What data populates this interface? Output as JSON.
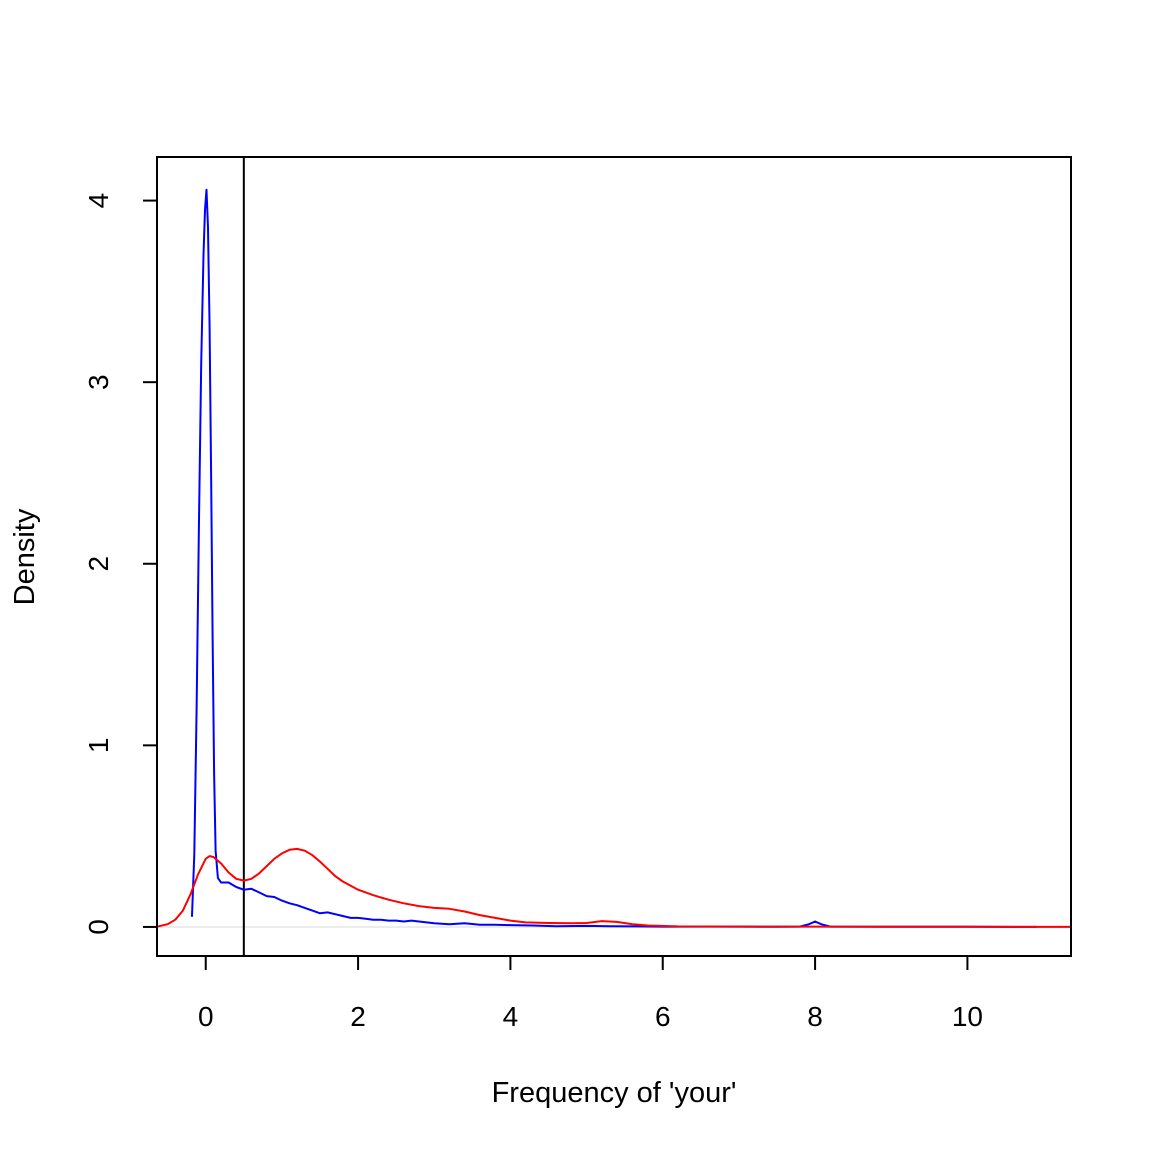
{
  "chart_data": {
    "type": "line",
    "title": "",
    "xlabel": "Frequency of 'your'",
    "ylabel": "Density",
    "xlim": [
      -0.64,
      11.36
    ],
    "ylim": [
      -0.16,
      4.24
    ],
    "x_ticks": [
      "0",
      "2",
      "4",
      "6",
      "8",
      "10"
    ],
    "y_ticks": [
      "0",
      "1",
      "2",
      "3",
      "4"
    ],
    "grid": false,
    "legend": null,
    "vline": {
      "x": 0.5,
      "color": "#000000"
    },
    "hline": {
      "y": 0,
      "color": "#e6e6e6"
    },
    "series": [
      {
        "color": "#0000ff",
        "points": [
          [
            -0.18,
            0.06
          ],
          [
            -0.15,
            0.4
          ],
          [
            -0.12,
            1.2
          ],
          [
            -0.09,
            2.2
          ],
          [
            -0.06,
            3.1
          ],
          [
            -0.03,
            3.7
          ],
          [
            -0.01,
            3.95
          ],
          [
            0.01,
            4.06
          ],
          [
            0.03,
            3.85
          ],
          [
            0.05,
            3.3
          ],
          [
            0.07,
            2.5
          ],
          [
            0.09,
            1.6
          ],
          [
            0.11,
            0.85
          ],
          [
            0.13,
            0.42
          ],
          [
            0.16,
            0.27
          ],
          [
            0.2,
            0.245
          ],
          [
            0.3,
            0.245
          ],
          [
            0.4,
            0.22
          ],
          [
            0.5,
            0.205
          ],
          [
            0.6,
            0.21
          ],
          [
            0.7,
            0.19
          ],
          [
            0.8,
            0.17
          ],
          [
            0.9,
            0.165
          ],
          [
            1.0,
            0.145
          ],
          [
            1.1,
            0.13
          ],
          [
            1.2,
            0.12
          ],
          [
            1.3,
            0.105
          ],
          [
            1.4,
            0.09
          ],
          [
            1.5,
            0.075
          ],
          [
            1.6,
            0.08
          ],
          [
            1.7,
            0.07
          ],
          [
            1.8,
            0.06
          ],
          [
            1.9,
            0.05
          ],
          [
            2.0,
            0.05
          ],
          [
            2.1,
            0.045
          ],
          [
            2.2,
            0.04
          ],
          [
            2.3,
            0.04
          ],
          [
            2.4,
            0.035
          ],
          [
            2.5,
            0.035
          ],
          [
            2.6,
            0.03
          ],
          [
            2.7,
            0.035
          ],
          [
            2.8,
            0.03
          ],
          [
            2.9,
            0.025
          ],
          [
            3.0,
            0.02
          ],
          [
            3.2,
            0.015
          ],
          [
            3.4,
            0.02
          ],
          [
            3.6,
            0.012
          ],
          [
            3.8,
            0.012
          ],
          [
            4.0,
            0.01
          ],
          [
            4.3,
            0.008
          ],
          [
            4.6,
            0.004
          ],
          [
            5.0,
            0.006
          ],
          [
            5.3,
            0.004
          ],
          [
            5.6,
            0.003
          ],
          [
            6.0,
            0.002
          ],
          [
            6.5,
            0.002
          ],
          [
            7.0,
            0.002
          ],
          [
            7.5,
            0.001
          ],
          [
            7.8,
            0.002
          ],
          [
            7.92,
            0.015
          ],
          [
            8.0,
            0.03
          ],
          [
            8.08,
            0.015
          ],
          [
            8.2,
            0.002
          ],
          [
            9.0,
            0.001
          ],
          [
            10.0,
            0.001
          ],
          [
            10.9,
            0.0
          ]
        ]
      },
      {
        "color": "#ff0000",
        "points": [
          [
            -0.64,
            0.002
          ],
          [
            -0.5,
            0.015
          ],
          [
            -0.4,
            0.04
          ],
          [
            -0.3,
            0.09
          ],
          [
            -0.2,
            0.18
          ],
          [
            -0.1,
            0.29
          ],
          [
            0.0,
            0.375
          ],
          [
            0.05,
            0.39
          ],
          [
            0.1,
            0.385
          ],
          [
            0.2,
            0.35
          ],
          [
            0.3,
            0.3
          ],
          [
            0.4,
            0.265
          ],
          [
            0.5,
            0.255
          ],
          [
            0.6,
            0.265
          ],
          [
            0.7,
            0.295
          ],
          [
            0.8,
            0.335
          ],
          [
            0.9,
            0.375
          ],
          [
            1.0,
            0.405
          ],
          [
            1.1,
            0.425
          ],
          [
            1.2,
            0.43
          ],
          [
            1.3,
            0.42
          ],
          [
            1.4,
            0.395
          ],
          [
            1.5,
            0.36
          ],
          [
            1.6,
            0.32
          ],
          [
            1.7,
            0.28
          ],
          [
            1.8,
            0.25
          ],
          [
            2.0,
            0.205
          ],
          [
            2.2,
            0.175
          ],
          [
            2.4,
            0.15
          ],
          [
            2.6,
            0.13
          ],
          [
            2.8,
            0.115
          ],
          [
            3.0,
            0.105
          ],
          [
            3.2,
            0.1
          ],
          [
            3.4,
            0.085
          ],
          [
            3.6,
            0.065
          ],
          [
            3.8,
            0.05
          ],
          [
            4.0,
            0.035
          ],
          [
            4.2,
            0.025
          ],
          [
            4.5,
            0.022
          ],
          [
            4.8,
            0.02
          ],
          [
            5.0,
            0.022
          ],
          [
            5.2,
            0.032
          ],
          [
            5.4,
            0.028
          ],
          [
            5.6,
            0.015
          ],
          [
            5.8,
            0.008
          ],
          [
            6.2,
            0.003
          ],
          [
            7.0,
            0.002
          ],
          [
            8.0,
            0.002
          ],
          [
            9.0,
            0.001
          ],
          [
            10.0,
            0.001
          ],
          [
            11.36,
            0.0
          ]
        ]
      }
    ]
  }
}
